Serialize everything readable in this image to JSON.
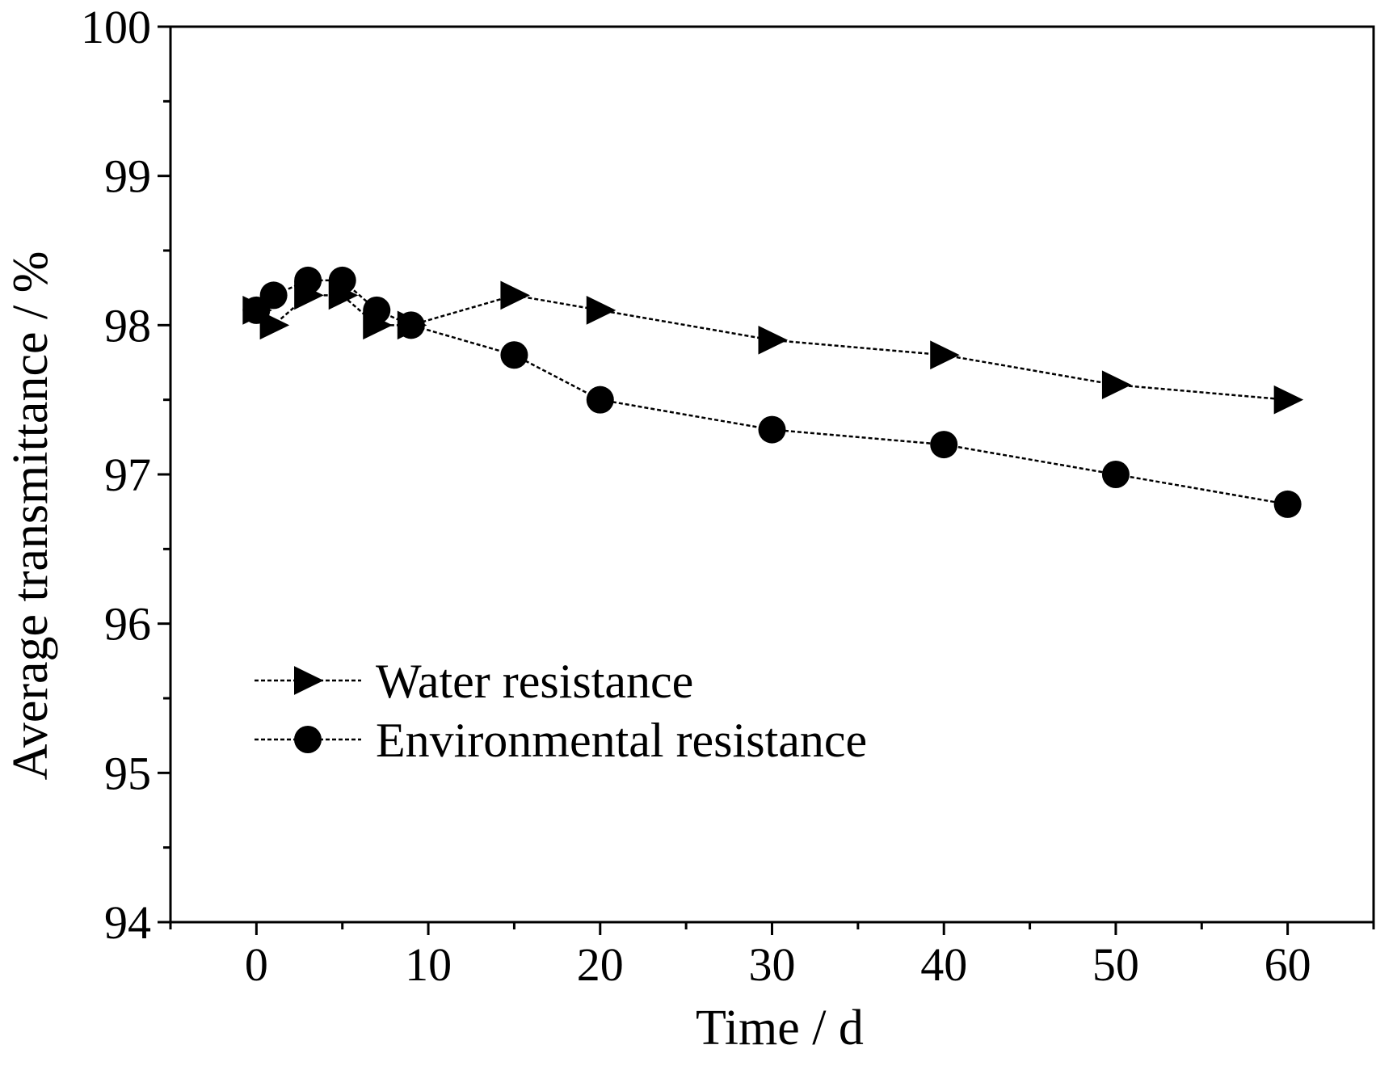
{
  "chart_data": {
    "type": "line",
    "title": "",
    "xlabel": "Time / d",
    "ylabel": "Average transmittance / %",
    "xlim": [
      -5,
      65
    ],
    "ylim": [
      94,
      100
    ],
    "x_ticks": [
      0,
      10,
      20,
      30,
      40,
      50,
      60
    ],
    "x_tick_labels": [
      "0",
      "10",
      "20",
      "30",
      "40",
      "50",
      "60"
    ],
    "y_ticks": [
      94,
      95,
      96,
      97,
      98,
      99,
      100
    ],
    "y_tick_labels": [
      "94",
      "95",
      "96",
      "97",
      "98",
      "99",
      "100"
    ],
    "grid": false,
    "legend_position": "bottom-left",
    "series": [
      {
        "name": "Water resistance",
        "marker": "triangle-right",
        "color": "#000000",
        "x": [
          0,
          1,
          3,
          5,
          7,
          9,
          15,
          20,
          30,
          40,
          50,
          60
        ],
        "y": [
          98.1,
          98.0,
          98.2,
          98.2,
          98.0,
          98.0,
          98.2,
          98.1,
          97.9,
          97.8,
          97.6,
          97.5
        ]
      },
      {
        "name": "Environmental resistance",
        "marker": "circle",
        "color": "#000000",
        "x": [
          0,
          1,
          3,
          5,
          7,
          9,
          15,
          20,
          30,
          40,
          50,
          60
        ],
        "y": [
          98.1,
          98.2,
          98.3,
          98.3,
          98.1,
          98.0,
          97.8,
          97.5,
          97.3,
          97.2,
          97.0,
          96.8
        ]
      }
    ]
  }
}
